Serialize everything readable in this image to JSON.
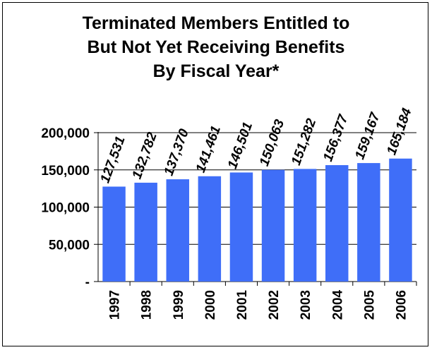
{
  "chart_data": {
    "type": "bar",
    "title_lines": [
      "Terminated Members Entitled to",
      "But Not Yet Receiving Benefits",
      "By Fiscal Year*"
    ],
    "categories": [
      "1997",
      "1998",
      "1999",
      "2000",
      "2001",
      "2002",
      "2003",
      "2004",
      "2005",
      "2006"
    ],
    "values": [
      127531,
      132782,
      137370,
      141461,
      146501,
      150063,
      151282,
      156377,
      159167,
      165184
    ],
    "value_labels": [
      "127,531",
      "132,782",
      "137,370",
      "141,461",
      "146,501",
      "150,063",
      "151,282",
      "156,377",
      "159,167",
      "165,184"
    ],
    "y_tick_values": [
      0,
      50000,
      100000,
      150000,
      200000
    ],
    "y_tick_labels": [
      "-",
      "50,000",
      "100,000",
      "150,000",
      "200,000"
    ],
    "ylim": [
      0,
      200000
    ],
    "grid": true,
    "bar_color": "#3f6ef8"
  }
}
